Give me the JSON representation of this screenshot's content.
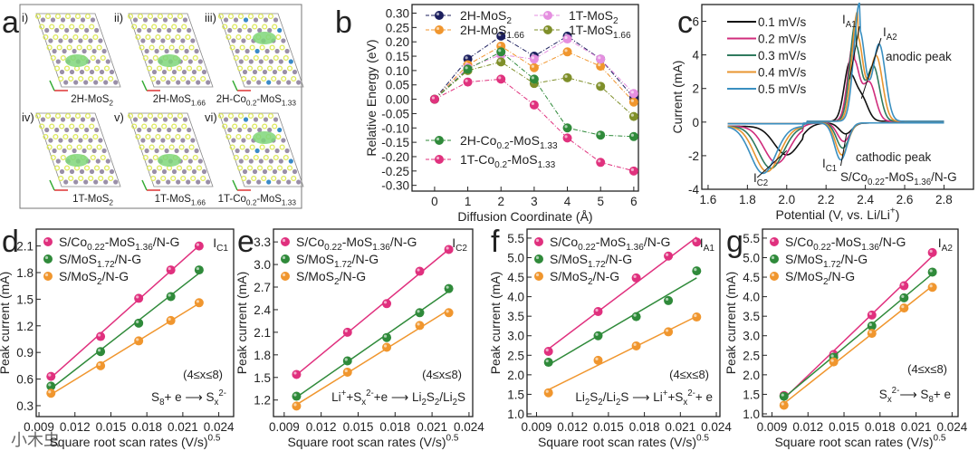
{
  "panel_letters": [
    "a",
    "b",
    "c",
    "d",
    "e",
    "f",
    "g"
  ],
  "panel_a": {
    "structures": [
      {
        "index": "i)",
        "label": "2H-MoS_{2}",
        "dopant": false
      },
      {
        "index": "ii)",
        "label": "2H-MoS_{1.66}",
        "dopant": false
      },
      {
        "index": "iii)",
        "label": "2H-Co_{0.2}-MoS_{1.33}",
        "dopant": true
      },
      {
        "index": "iv)",
        "label": "1T-MoS_{2}",
        "dopant": false
      },
      {
        "index": "v)",
        "label": "1T-MoS_{1.66}",
        "dopant": false
      },
      {
        "index": "vi)",
        "label": "1T-Co_{0.2}-MoS_{1.33}",
        "dopant": true
      }
    ],
    "colors": {
      "S": "#dde85a",
      "Mo": "#9a8fa8",
      "Co": "#3a8ac8",
      "charge": "#7fd67a"
    }
  },
  "watermark": "小木虫",
  "chart_data": [
    {
      "id": "b",
      "type": "line",
      "xlabel": "Diffusion Coordinate (Å)",
      "ylabel": "Relative Energy (eV)",
      "xlim": [
        -0.68,
        6.14
      ],
      "ylim": [
        -0.32,
        0.33
      ],
      "xticks": [
        0,
        1,
        2,
        3,
        4,
        5,
        6
      ],
      "yticks": [
        0.3,
        0.25,
        0.2,
        0.15,
        0.1,
        0.05,
        0.0,
        -0.05,
        -0.1,
        -0.15,
        -0.2,
        -0.25,
        -0.3
      ],
      "x": [
        0,
        1,
        2,
        3,
        4,
        5,
        6
      ],
      "series": [
        {
          "name": "2H-MoS_{2}",
          "color": "#1c1f5e",
          "values": [
            0,
            0.14,
            0.22,
            0.15,
            0.22,
            0.14,
            0.005
          ]
        },
        {
          "name": "2H-MoS_{1.66}",
          "color": "#f0962e",
          "values": [
            0,
            0.12,
            0.185,
            0.11,
            0.165,
            0.115,
            -0.01
          ]
        },
        {
          "name": "1T-MoS_{2}",
          "color": "#e58fe0",
          "values": [
            0,
            0.11,
            0.155,
            0.14,
            0.21,
            0.14,
            0.02
          ]
        },
        {
          "name": "1T-MoS_{1.66}",
          "color": "#7f8f2a",
          "values": [
            0,
            0.1,
            0.13,
            0.055,
            0.075,
            0.045,
            -0.06
          ]
        },
        {
          "name": "2H-Co_{0.2}-MoS_{1.33}",
          "color": "#2f8a3a",
          "values": [
            0,
            0.105,
            0.165,
            0.07,
            -0.1,
            -0.125,
            -0.13
          ]
        },
        {
          "name": "1T-Co_{0.2}-MoS_{1.33}",
          "color": "#e0327e",
          "values": [
            0,
            0.06,
            0.07,
            -0.02,
            -0.135,
            -0.22,
            -0.25
          ]
        }
      ]
    },
    {
      "id": "c",
      "type": "line",
      "xlabel": "Potential (V, vs. Li/Li^{+})",
      "ylabel": "Current  (mA)",
      "xlim": [
        1.568,
        2.95
      ],
      "ylim": [
        -4,
        7
      ],
      "xticks": [
        1.6,
        1.8,
        2.0,
        2.2,
        2.4,
        2.6,
        2.8
      ],
      "yticks": [
        -4,
        -2,
        0,
        2,
        4,
        6
      ],
      "annotations": {
        "ia1": "I_{A1}",
        "ia2": "I_{A2}",
        "ic1": "I_{C1}",
        "ic2": "I_{C2}",
        "anodic": "anodic peak",
        "cathodic": "cathodic peak",
        "sample": "S/Co_{0.22}-MoS_{1.36}/N-G"
      },
      "series": [
        {
          "name": "0.1 mV/s",
          "color": "#111111",
          "peaks": {
            "A1": [
              2.32,
              2.55
            ],
            "A2": [
              2.38,
              1.4
            ],
            "C1": [
              2.3,
              -0.65
            ],
            "C2": [
              2.0,
              -1.7
            ]
          }
        },
        {
          "name": "0.2 mV/s",
          "color": "#d02c7c",
          "peaks": {
            "A1": [
              2.34,
              3.6
            ],
            "A2": [
              2.42,
              2.3
            ],
            "C1": [
              2.29,
              -1.1
            ],
            "C2": [
              1.95,
              -2.2
            ]
          }
        },
        {
          "name": "0.3 mV/s",
          "color": "#2f7a5e",
          "peaks": {
            "A1": [
              2.35,
              4.5
            ],
            "A2": [
              2.44,
              3.3
            ],
            "C1": [
              2.285,
              -1.5
            ],
            "C2": [
              1.92,
              -2.5
            ]
          }
        },
        {
          "name": "0.4 mV/s",
          "color": "#e8952f",
          "peaks": {
            "A1": [
              2.36,
              5.0
            ],
            "A2": [
              2.455,
              3.9
            ],
            "C1": [
              2.28,
              -1.9
            ],
            "C2": [
              1.9,
              -2.7
            ]
          }
        },
        {
          "name": "0.5 mV/s",
          "color": "#3a8fc0",
          "peaks": {
            "A1": [
              2.37,
              5.4
            ],
            "A2": [
              2.47,
              4.6
            ],
            "C1": [
              2.275,
              -2.2
            ],
            "C2": [
              1.88,
              -2.8
            ]
          }
        }
      ]
    },
    {
      "id": "d",
      "type": "scatter",
      "peak": "I_{C1}",
      "xlabel": "Square root scan rates (V/s)^{0.5}",
      "ylabel": "Peak current (mA)",
      "xlim": [
        0.00877,
        0.02524
      ],
      "ylim": [
        0.177,
        2.29
      ],
      "xticks": [
        0.009,
        0.012,
        0.015,
        0.018,
        0.021,
        0.024
      ],
      "yticks": [
        0.3,
        0.6,
        0.9,
        1.2,
        1.5,
        1.8,
        2.1
      ],
      "range_note": "(4≤x≤8)",
      "reaction": "S_{8}+ e ⟶ S_{x}^{2-}",
      "x": [
        0.01,
        0.01414,
        0.01732,
        0.02,
        0.02236
      ],
      "series": [
        {
          "name": "S/Co_{0.22}-MoS_{1.36}/N-G",
          "color": "#e0307e",
          "values": [
            0.63,
            1.08,
            1.51,
            1.83,
            2.1
          ]
        },
        {
          "name": "S/MoS_{1.72}/N-G",
          "color": "#2f8a3a",
          "values": [
            0.52,
            0.91,
            1.23,
            1.53,
            1.83
          ]
        },
        {
          "name": "S/MoS_{2}/N-G",
          "color": "#f0962e",
          "values": [
            0.44,
            0.75,
            1.03,
            1.26,
            1.46
          ]
        }
      ]
    },
    {
      "id": "e",
      "type": "scatter",
      "peak": "I_{C2}",
      "xlabel": "Square root scan rates (V/s)^{0.5}",
      "ylabel": "Peak current (mA)",
      "xlim": [
        0.00813,
        0.0243
      ],
      "ylim": [
        0.98,
        3.47
      ],
      "xticks": [
        0.009,
        0.012,
        0.015,
        0.018,
        0.021,
        0.024
      ],
      "yticks": [
        1.2,
        1.5,
        1.8,
        2.1,
        2.4,
        2.7,
        3.0,
        3.3
      ],
      "range_note": "(4≤x≤8)",
      "reaction": "Li^{+}+S_{x}^{2-}+e ⟶ Li_{2}S_{2}/Li_{2}S",
      "x": [
        0.01,
        0.01414,
        0.01732,
        0.02,
        0.02236
      ],
      "series": [
        {
          "name": "S/Co_{0.22}-MoS_{1.36}/N-G",
          "color": "#e0307e",
          "values": [
            1.54,
            2.1,
            2.48,
            2.91,
            3.2
          ]
        },
        {
          "name": "S/MoS_{1.72}/N-G",
          "color": "#2f8a3a",
          "values": [
            1.25,
            1.72,
            2.03,
            2.36,
            2.68
          ]
        },
        {
          "name": "S/MoS_{2}/N-G",
          "color": "#f0962e",
          "values": [
            1.12,
            1.57,
            1.9,
            2.19,
            2.36
          ]
        }
      ]
    },
    {
      "id": "f",
      "type": "scatter",
      "peak": "I_{A1}",
      "xlabel": "Square root scan rates (V/s)^{0.5}",
      "ylabel": "Peak current (mA)",
      "xlim": [
        0.00821,
        0.0243
      ],
      "ylim": [
        0.93,
        5.73
      ],
      "xticks": [
        0.009,
        0.012,
        0.015,
        0.018,
        0.021,
        0.024
      ],
      "yticks": [
        1.0,
        1.5,
        2.0,
        2.5,
        3.0,
        3.5,
        4.0,
        4.5,
        5.0,
        5.5
      ],
      "range_note": "(4≤x≤8)",
      "reaction": "Li_{2}S_{2}/Li_{2}S ⟶ Li^{+}+S_{x}^{2-}+ e",
      "x": [
        0.01,
        0.01414,
        0.01732,
        0.02,
        0.02236
      ],
      "series": [
        {
          "name": "S/Co_{0.22}-MoS_{1.36}/N-G",
          "color": "#e0307e",
          "values": [
            2.6,
            3.62,
            4.48,
            5.04,
            5.4
          ]
        },
        {
          "name": "S/MoS_{1.72}/N-G",
          "color": "#2f8a3a",
          "values": [
            2.32,
            3.0,
            3.49,
            3.9,
            4.66
          ]
        },
        {
          "name": "S/MoS_{2}/N-G",
          "color": "#f0962e",
          "values": [
            1.54,
            2.37,
            2.74,
            3.1,
            3.48
          ]
        }
      ]
    },
    {
      "id": "g",
      "type": "scatter",
      "peak": "I_{A2}",
      "xlabel": "Square root scan rates (V/s)^{0.5}",
      "ylabel": "Peak current (mA)",
      "xlim": [
        0.00821,
        0.0245
      ],
      "ylim": [
        0.93,
        5.73
      ],
      "xticks": [
        0.009,
        0.012,
        0.015,
        0.018,
        0.021,
        0.024
      ],
      "yticks": [
        1.0,
        1.5,
        2.0,
        2.5,
        3.0,
        3.5,
        4.0,
        4.5,
        5.0,
        5.5
      ],
      "range_note": "(4≤x≤8)",
      "reaction": "S_{x}^{2-}⟶ S_{8}+ e",
      "x": [
        0.01,
        0.01414,
        0.01732,
        0.02,
        0.02236
      ],
      "series": [
        {
          "name": "S/Co_{0.22}-MoS_{1.36}/N-G",
          "color": "#e0307e",
          "values": [
            1.47,
            2.52,
            3.53,
            4.28,
            5.13
          ]
        },
        {
          "name": "S/MoS_{1.72}/N-G",
          "color": "#2f8a3a",
          "values": [
            1.45,
            2.45,
            3.25,
            3.97,
            4.63
          ]
        },
        {
          "name": "S/MoS_{2}/N-G",
          "color": "#f0962e",
          "values": [
            1.22,
            2.33,
            3.06,
            3.71,
            4.24
          ]
        }
      ]
    }
  ]
}
